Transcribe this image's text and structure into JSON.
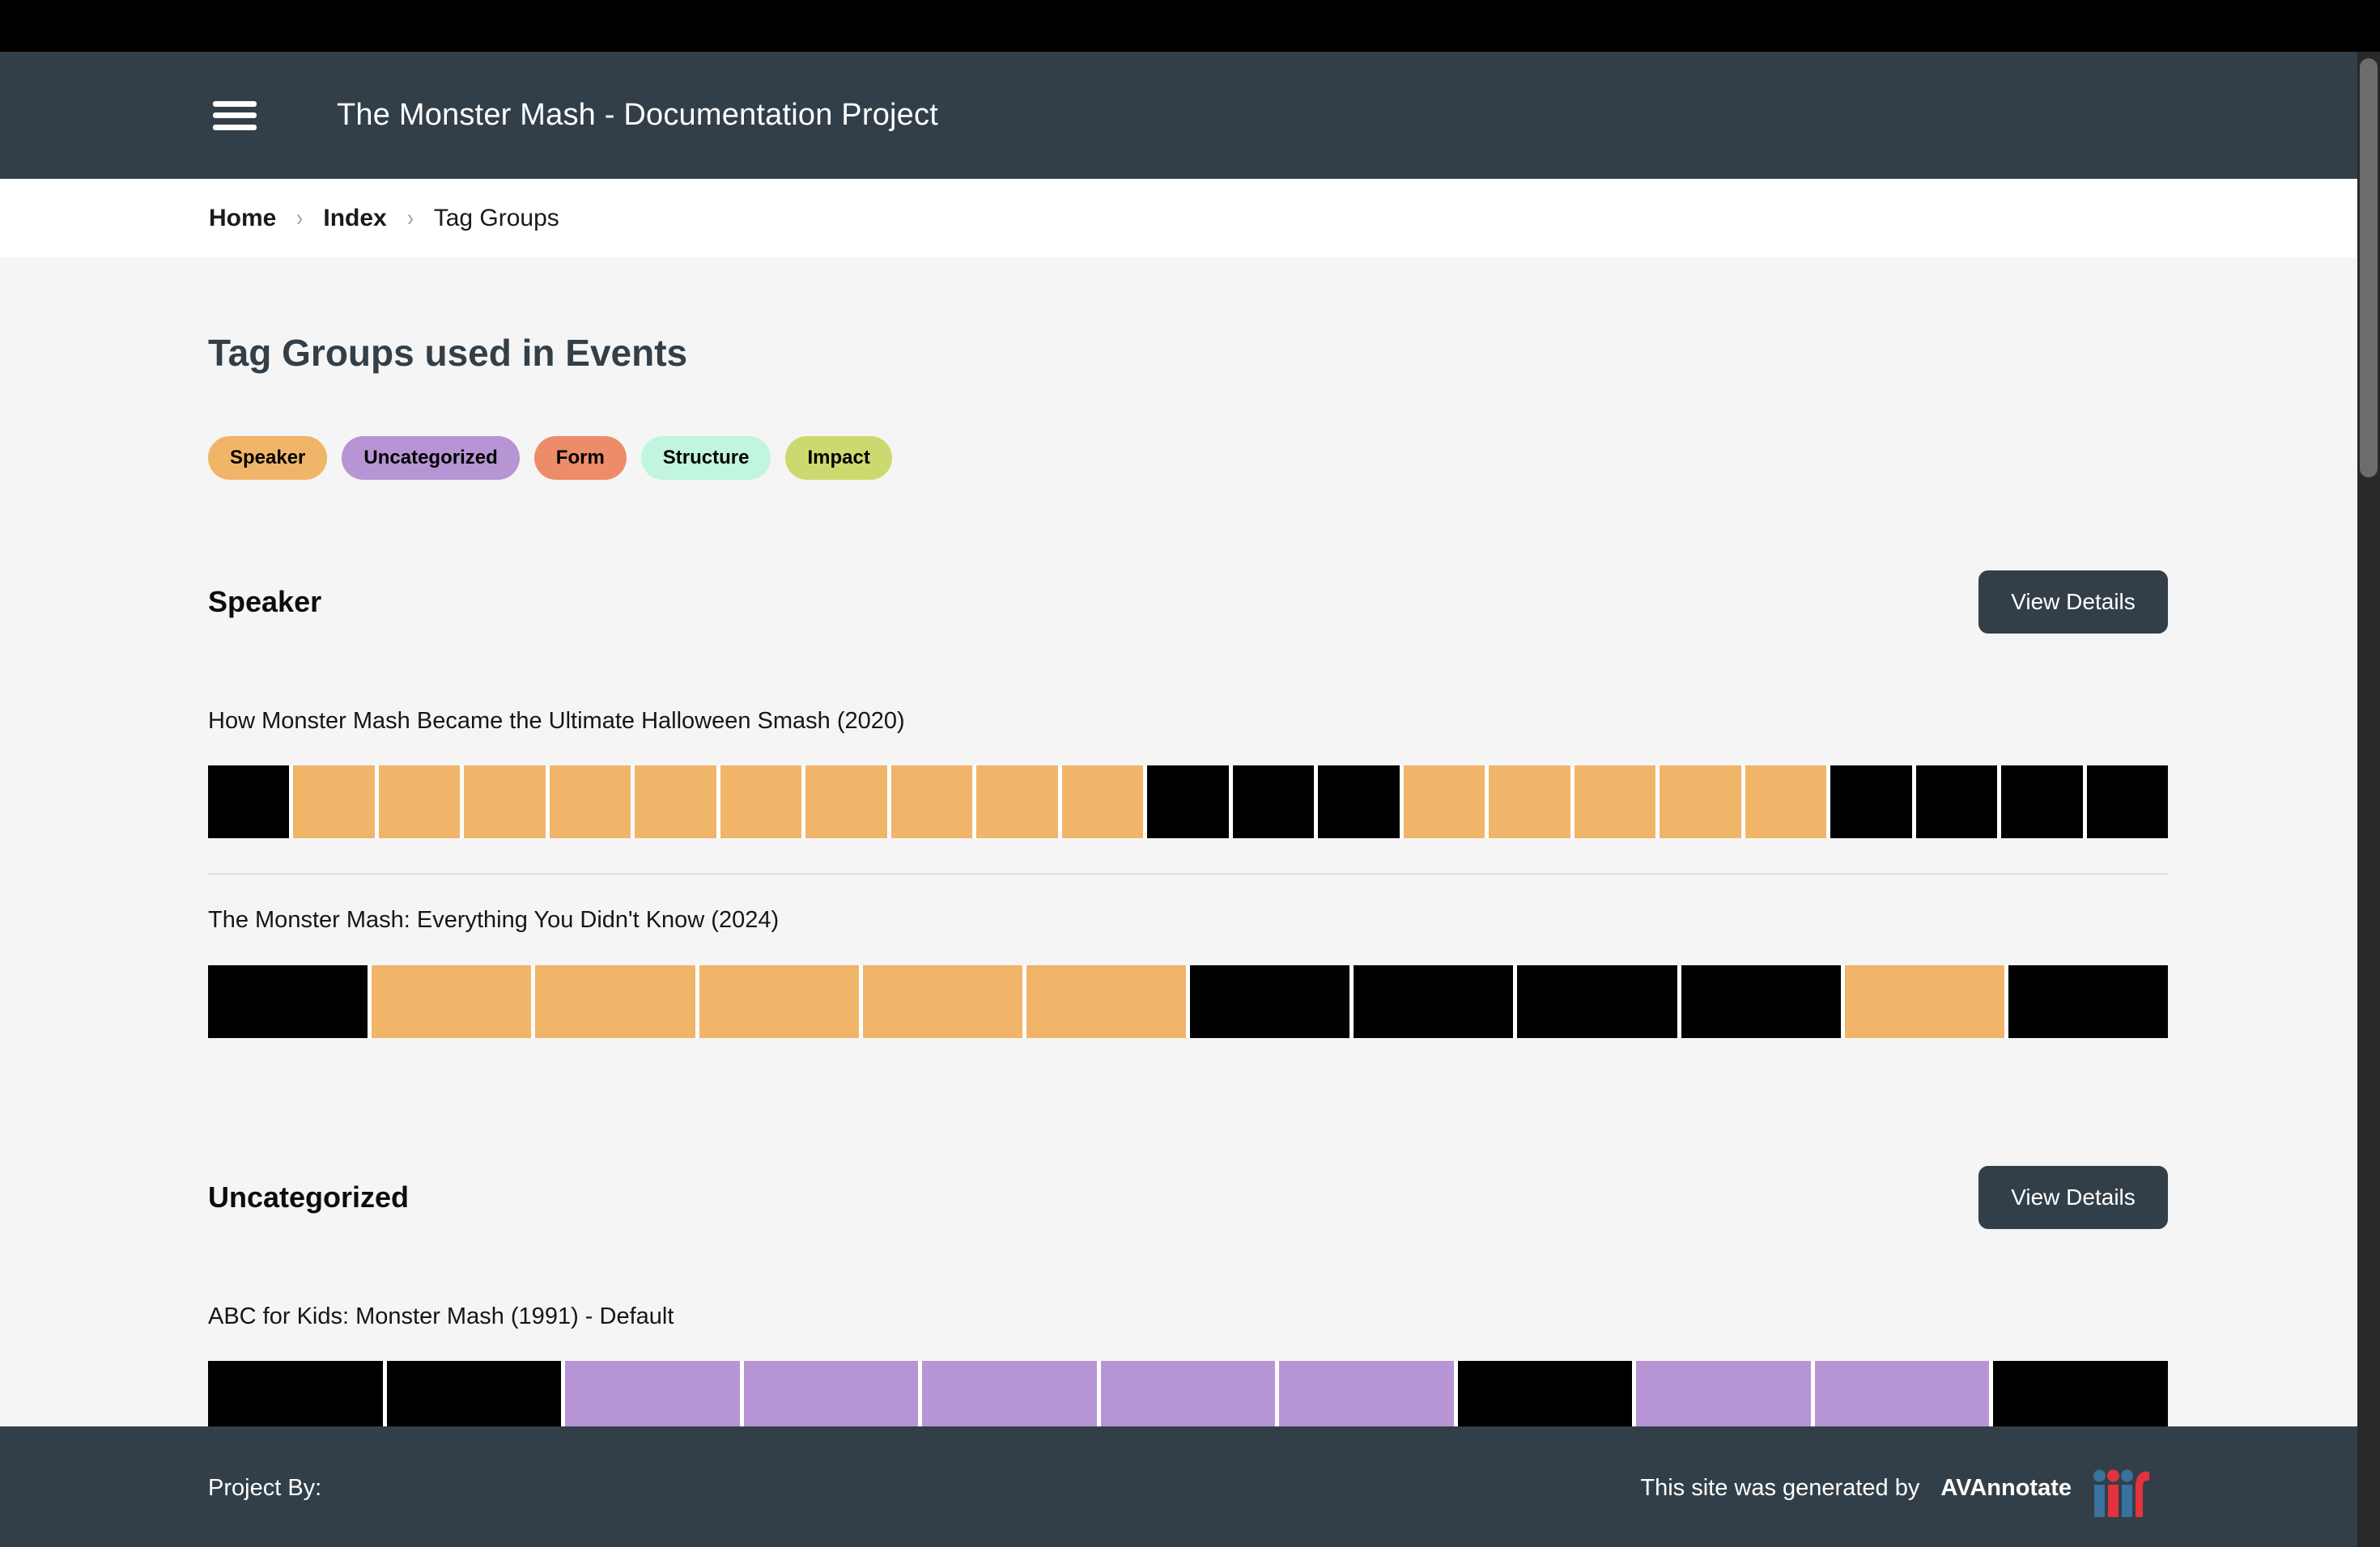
{
  "header": {
    "title": "The Monster Mash - Documentation Project"
  },
  "breadcrumb": {
    "separator": "›",
    "items": [
      {
        "label": "Home",
        "bold": true,
        "clickable": true
      },
      {
        "label": "Index",
        "bold": true,
        "clickable": true
      },
      {
        "label": "Tag Groups",
        "bold": false,
        "clickable": false
      }
    ]
  },
  "main": {
    "heading": "Tag Groups used in Events",
    "tag_pills": [
      {
        "label": "Speaker",
        "color": "#f0b569"
      },
      {
        "label": "Uncategorized",
        "color": "#b794d4"
      },
      {
        "label": "Form",
        "color": "#ec8c68"
      },
      {
        "label": "Structure",
        "color": "#c1f5dd"
      },
      {
        "label": "Impact",
        "color": "#cdd96e"
      }
    ],
    "sections": [
      {
        "title": "Speaker",
        "button_label": "View Details",
        "tag_color": "#f0b569",
        "events": [
          {
            "title": "How Monster Mash Became the Ultimate Halloween Smash (2020)",
            "segments": [
              "black",
              "tag",
              "tag",
              "tag",
              "tag",
              "tag",
              "tag",
              "tag",
              "tag",
              "tag",
              "tag",
              "black",
              "black",
              "black",
              "tag",
              "tag",
              "tag",
              "tag",
              "tag",
              "black",
              "black",
              "black",
              "black"
            ]
          },
          {
            "title": "The Monster Mash: Everything You Didn't Know (2024)",
            "segments": [
              "black",
              "tag",
              "tag",
              "tag",
              "tag",
              "tag",
              "black",
              "black",
              "black",
              "black",
              "tag",
              "black"
            ]
          }
        ]
      },
      {
        "title": "Uncategorized",
        "button_label": "View Details",
        "tag_color": "#b794d4",
        "events": [
          {
            "title": "ABC for Kids: Monster Mash (1991) - Default",
            "segments": [
              "black",
              "black",
              "tag",
              "tag",
              "tag",
              "tag",
              "tag",
              "black",
              "tag",
              "tag",
              "black"
            ]
          }
        ]
      }
    ]
  },
  "colors": {
    "segment_untagged": "#000000",
    "brand_slate": "#333f48",
    "iiif_blue": "#39719f",
    "iiif_red": "#e3333f"
  },
  "footer": {
    "project_by": "Project By:",
    "generated_text": "This site was generated by",
    "brand": "AVAnnotate",
    "logo": "iiif-logo"
  }
}
